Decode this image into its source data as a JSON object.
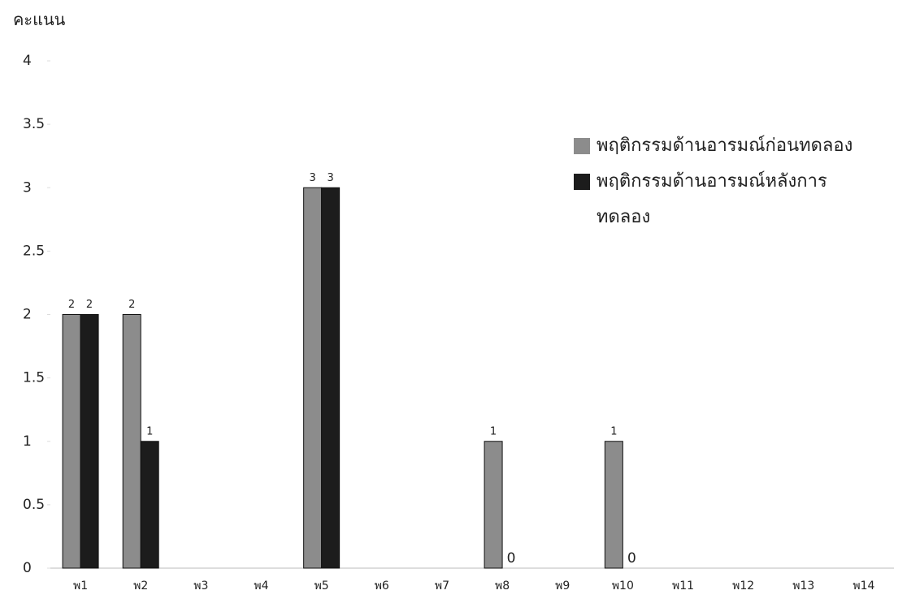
{
  "chart_data": {
    "type": "bar",
    "y_axis_label": "คะแนน",
    "categories": [
      "พ1",
      "พ2",
      "พ3",
      "พ4",
      "พ5",
      "พ6",
      "พ7",
      "พ8",
      "พ9",
      "พ10",
      "พ11",
      "พ12",
      "พ13",
      "พ14"
    ],
    "series": [
      {
        "name": "พฤติกรรมด้านอารมณ์ก่อนทดลอง",
        "color": "#8c8c8c",
        "values": [
          2,
          2,
          null,
          null,
          3,
          null,
          null,
          1,
          null,
          1,
          null,
          null,
          null,
          null
        ]
      },
      {
        "name": "พฤติกรรมด้านอารมณ์หลังการทดลอง",
        "color": "#1c1c1c",
        "values": [
          2,
          1,
          null,
          null,
          3,
          null,
          null,
          0,
          null,
          0,
          null,
          null,
          null,
          null
        ]
      }
    ],
    "ylim": [
      0,
      4
    ],
    "yticks": [
      0,
      0.5,
      1,
      1.5,
      2,
      2.5,
      3,
      3.5,
      4
    ],
    "grid": false
  }
}
